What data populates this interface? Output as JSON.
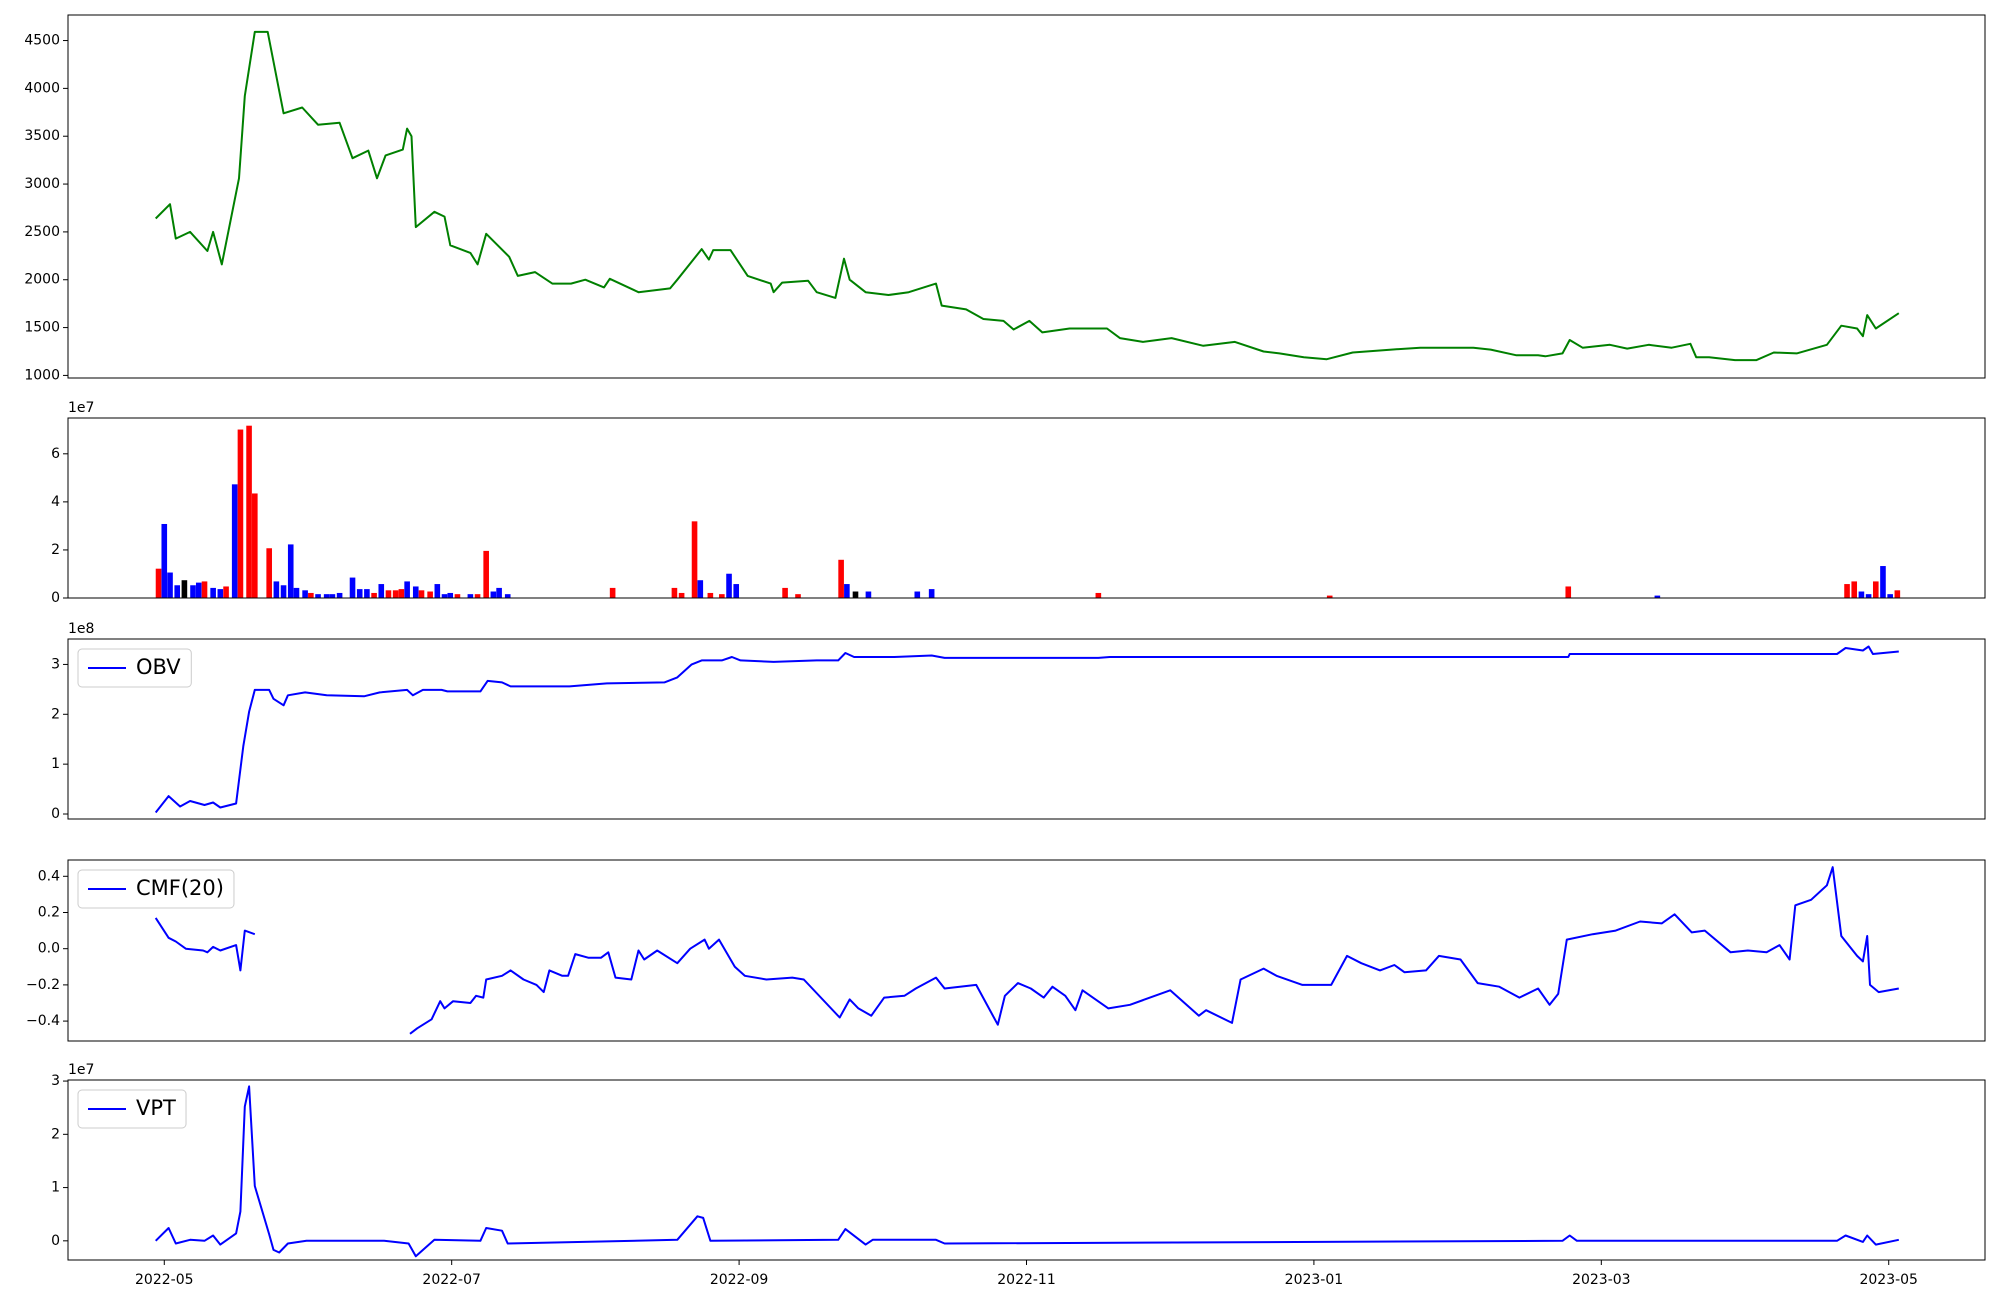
{
  "chart_data": [
    {
      "type": "line",
      "color": "#008000",
      "xlim": [
        -0.67,
        12.67
      ],
      "ylim": [
        973,
        4767
      ],
      "yticks": [
        1000,
        1500,
        2000,
        2500,
        3000,
        3500,
        4000,
        4500
      ],
      "x": [
        -0.06,
        0.04,
        0.08,
        0.18,
        0.3,
        0.34,
        0.4,
        0.52,
        0.56,
        0.63,
        0.72,
        0.83,
        0.96,
        1.07,
        1.22,
        1.31,
        1.42,
        1.48,
        1.54,
        1.66,
        1.69,
        1.72,
        1.75,
        1.88,
        1.95,
        1.99,
        2.13,
        2.18,
        2.24,
        2.4,
        2.46,
        2.58,
        2.7,
        2.83,
        2.93,
        3.06,
        3.1,
        3.3,
        3.52,
        3.57,
        3.74,
        3.79,
        3.82,
        3.94,
        4.06,
        4.22,
        4.24,
        4.3,
        4.48,
        4.54,
        4.67,
        4.73,
        4.77,
        4.88,
        5.04,
        5.18,
        5.37,
        5.41,
        5.58,
        5.7,
        5.84,
        5.91,
        6.02,
        6.11,
        6.3,
        6.56,
        6.65,
        6.81,
        7.01,
        7.23,
        7.45,
        7.65,
        7.76,
        7.93,
        8.09,
        8.27,
        8.54,
        8.74,
        8.95,
        9.11,
        9.23,
        9.41,
        9.56,
        9.61,
        9.73,
        9.78,
        9.87,
        10.06,
        10.18,
        10.33,
        10.49,
        10.62,
        10.66,
        10.75,
        10.93,
        11.08,
        11.2,
        11.36,
        11.57,
        11.67,
        11.78,
        11.82,
        11.85,
        11.91,
        12.07
      ],
      "values": [
        2640,
        2790,
        2430,
        2500,
        2300,
        2500,
        2160,
        3060,
        3920,
        4590,
        4590,
        3740,
        3800,
        3620,
        3640,
        3270,
        3350,
        3060,
        3300,
        3360,
        3580,
        3500,
        2550,
        2710,
        2660,
        2360,
        2280,
        2160,
        2480,
        2240,
        2040,
        2080,
        1960,
        1960,
        2000,
        1920,
        2010,
        1870,
        1910,
        2000,
        2320,
        2210,
        2310,
        2310,
        2040,
        1960,
        1870,
        1970,
        1990,
        1870,
        1810,
        2220,
        2000,
        1870,
        1840,
        1870,
        1960,
        1730,
        1690,
        1590,
        1570,
        1480,
        1570,
        1450,
        1490,
        1490,
        1390,
        1350,
        1390,
        1310,
        1350,
        1250,
        1230,
        1190,
        1170,
        1240,
        1270,
        1290,
        1290,
        1290,
        1270,
        1210,
        1210,
        1200,
        1230,
        1370,
        1290,
        1320,
        1280,
        1320,
        1290,
        1330,
        1190,
        1190,
        1160,
        1160,
        1240,
        1230,
        1320,
        1520,
        1490,
        1410,
        1630,
        1490,
        1650
      ]
    },
    {
      "type": "bar",
      "xlim": [
        -0.67,
        12.67
      ],
      "ylim": [
        0,
        7.49
      ],
      "yticks": [
        0,
        2,
        4,
        6
      ],
      "offset_label": "1e7",
      "x": [
        -0.04,
        0.0,
        0.04,
        0.09,
        0.14,
        0.2,
        0.24,
        0.28,
        0.34,
        0.39,
        0.43,
        0.49,
        0.53,
        0.59,
        0.63,
        0.73,
        0.78,
        0.83,
        0.88,
        0.92,
        0.98,
        1.02,
        1.07,
        1.13,
        1.17,
        1.22,
        1.31,
        1.36,
        1.41,
        1.46,
        1.51,
        1.56,
        1.61,
        1.65,
        1.69,
        1.75,
        1.79,
        1.85,
        1.9,
        1.95,
        1.99,
        2.04,
        2.13,
        2.18,
        2.24,
        2.29,
        2.33,
        2.39,
        3.12,
        3.55,
        3.6,
        3.69,
        3.73,
        3.8,
        3.88,
        3.93,
        3.98,
        4.32,
        4.41,
        4.71,
        4.75,
        4.81,
        4.9,
        5.24,
        5.34,
        6.5,
        8.11,
        9.77,
        10.39,
        11.71,
        11.76,
        11.81,
        11.86,
        11.91,
        11.96,
        12.01,
        12.06
      ],
      "values": [
        1.22,
        3.08,
        1.06,
        0.53,
        0.74,
        0.53,
        0.64,
        0.69,
        0.42,
        0.37,
        0.48,
        4.73,
        7.01,
        7.17,
        4.35,
        2.07,
        0.69,
        0.53,
        2.23,
        0.42,
        0.32,
        0.21,
        0.16,
        0.16,
        0.16,
        0.21,
        0.85,
        0.37,
        0.37,
        0.21,
        0.58,
        0.32,
        0.32,
        0.37,
        0.69,
        0.48,
        0.32,
        0.27,
        0.58,
        0.16,
        0.21,
        0.16,
        0.16,
        0.16,
        1.96,
        0.27,
        0.42,
        0.16,
        0.42,
        0.42,
        0.21,
        3.19,
        0.74,
        0.21,
        0.16,
        1.01,
        0.58,
        0.42,
        0.16,
        1.59,
        0.58,
        0.27,
        0.27,
        0.27,
        0.37,
        0.21,
        0.1,
        0.48,
        0.1,
        0.58,
        0.69,
        0.27,
        0.16,
        0.69,
        1.33,
        0.16,
        0.32
      ],
      "colors": [
        "#ff0000",
        "#0000ff",
        "#0000ff",
        "#0000ff",
        "#000000",
        "#0000ff",
        "#0000ff",
        "#ff0000",
        "#0000ff",
        "#0000ff",
        "#ff0000",
        "#0000ff",
        "#ff0000",
        "#ff0000",
        "#ff0000",
        "#ff0000",
        "#0000ff",
        "#0000ff",
        "#0000ff",
        "#0000ff",
        "#0000ff",
        "#ff0000",
        "#0000ff",
        "#0000ff",
        "#0000ff",
        "#0000ff",
        "#0000ff",
        "#0000ff",
        "#0000ff",
        "#ff0000",
        "#0000ff",
        "#ff0000",
        "#ff0000",
        "#ff0000",
        "#0000ff",
        "#0000ff",
        "#ff0000",
        "#ff0000",
        "#0000ff",
        "#0000ff",
        "#0000ff",
        "#ff0000",
        "#0000ff",
        "#ff0000",
        "#ff0000",
        "#0000ff",
        "#0000ff",
        "#0000ff",
        "#ff0000",
        "#ff0000",
        "#ff0000",
        "#ff0000",
        "#0000ff",
        "#ff0000",
        "#ff0000",
        "#0000ff",
        "#0000ff",
        "#ff0000",
        "#ff0000",
        "#ff0000",
        "#0000ff",
        "#000000",
        "#0000ff",
        "#0000ff",
        "#0000ff",
        "#ff0000",
        "#ff0000",
        "#ff0000",
        "#0000ff",
        "#ff0000",
        "#ff0000",
        "#0000ff",
        "#0000ff",
        "#ff0000",
        "#0000ff",
        "#0000ff",
        "#ff0000"
      ]
    },
    {
      "type": "line",
      "xlim": [
        -0.67,
        12.67
      ],
      "ylim": [
        -0.1,
        3.51
      ],
      "yticks": [
        0,
        1,
        2,
        3
      ],
      "offset_label": "1e8",
      "x": [
        -0.06,
        0.03,
        0.11,
        0.18,
        0.28,
        0.34,
        0.39,
        0.5,
        0.55,
        0.59,
        0.63,
        0.73,
        0.76,
        0.83,
        0.86,
        0.98,
        1.13,
        1.39,
        1.5,
        1.69,
        1.73,
        1.8,
        1.93,
        1.97,
        2.2,
        2.25,
        2.35,
        2.41,
        2.64,
        2.82,
        3.08,
        3.48,
        3.57,
        3.67,
        3.74,
        3.88,
        3.95,
        4.01,
        4.24,
        4.54,
        4.69,
        4.74,
        4.8,
        5.08,
        5.34,
        5.43,
        6.5,
        6.58,
        8.09,
        9.77,
        9.78,
        11.64,
        11.7,
        11.82,
        11.86,
        11.89,
        12.07
      ],
      "series": [
        {
          "name": "OBV",
          "color": "#0000ff",
          "values": [
            0.03,
            0.36,
            0.15,
            0.26,
            0.18,
            0.23,
            0.13,
            0.21,
            1.36,
            2.05,
            2.49,
            2.49,
            2.31,
            2.18,
            2.38,
            2.44,
            2.38,
            2.36,
            2.44,
            2.49,
            2.38,
            2.49,
            2.49,
            2.46,
            2.46,
            2.67,
            2.64,
            2.56,
            2.56,
            2.56,
            2.62,
            2.64,
            2.74,
            3.0,
            3.08,
            3.08,
            3.15,
            3.08,
            3.05,
            3.08,
            3.08,
            3.23,
            3.15,
            3.15,
            3.18,
            3.13,
            3.13,
            3.15,
            3.15,
            3.15,
            3.21,
            3.21,
            3.33,
            3.28,
            3.36,
            3.21,
            3.26
          ]
        }
      ]
    },
    {
      "type": "line",
      "xlim": [
        -0.67,
        12.67
      ],
      "ylim": [
        -0.51,
        0.49
      ],
      "yticks": [
        {
          "value": -0.4,
          "label": "−0.4"
        },
        {
          "value": -0.2,
          "label": "−0.2"
        },
        {
          "value": 0,
          "label": "0.0"
        },
        0.2,
        0.4
      ],
      "x": [
        -0.06,
        0.03,
        0.08,
        0.15,
        0.27,
        0.3,
        0.34,
        0.39,
        0.5,
        0.53,
        0.56,
        0.63,
        1.0,
        1.71,
        1.76,
        1.86,
        1.92,
        1.95,
        2.01,
        2.13,
        2.17,
        2.22,
        2.24,
        2.35,
        2.41,
        2.5,
        2.59,
        2.64,
        2.68,
        2.77,
        2.81,
        2.86,
        2.95,
        3.04,
        3.09,
        3.14,
        3.25,
        3.3,
        3.34,
        3.43,
        3.57,
        3.66,
        3.76,
        3.79,
        3.86,
        3.97,
        4.04,
        4.19,
        4.37,
        4.45,
        4.7,
        4.77,
        4.83,
        4.92,
        5.01,
        5.15,
        5.23,
        5.37,
        5.43,
        5.65,
        5.8,
        5.85,
        5.94,
        6.03,
        6.12,
        6.18,
        6.27,
        6.34,
        6.39,
        6.57,
        6.72,
        7.0,
        7.2,
        7.25,
        7.43,
        7.49,
        7.65,
        7.74,
        7.92,
        8.12,
        8.23,
        8.33,
        8.46,
        8.56,
        8.63,
        8.78,
        8.87,
        9.02,
        9.14,
        9.29,
        9.43,
        9.56,
        9.64,
        9.7,
        9.76,
        9.94,
        10.1,
        10.27,
        10.42,
        10.51,
        10.63,
        10.72,
        10.9,
        11.02,
        11.15,
        11.24,
        11.31,
        11.35,
        11.46,
        11.57,
        11.61,
        11.67,
        11.78,
        11.82,
        11.85,
        11.87,
        11.93,
        12.07
      ],
      "series": [
        {
          "name": "CMF(20)",
          "color": "#0000ff",
          "values": [
            0.17,
            0.06,
            0.04,
            0.0,
            -0.01,
            -0.02,
            0.01,
            -0.01,
            0.02,
            -0.12,
            0.1,
            0.08,
            null,
            -0.47,
            -0.44,
            -0.39,
            -0.29,
            -0.33,
            -0.29,
            -0.3,
            -0.26,
            -0.27,
            -0.17,
            -0.15,
            -0.12,
            -0.17,
            -0.2,
            -0.24,
            -0.12,
            -0.15,
            -0.15,
            -0.03,
            -0.05,
            -0.05,
            -0.02,
            -0.16,
            -0.17,
            -0.01,
            -0.06,
            -0.01,
            -0.08,
            0.0,
            0.05,
            0.0,
            0.05,
            -0.1,
            -0.15,
            -0.17,
            -0.16,
            -0.17,
            -0.38,
            -0.28,
            -0.33,
            -0.37,
            -0.27,
            -0.26,
            -0.22,
            -0.16,
            -0.22,
            -0.2,
            -0.42,
            -0.26,
            -0.19,
            -0.22,
            -0.27,
            -0.21,
            -0.26,
            -0.34,
            -0.23,
            -0.33,
            -0.31,
            -0.23,
            -0.37,
            -0.34,
            -0.41,
            -0.17,
            -0.11,
            -0.15,
            -0.2,
            -0.2,
            -0.04,
            -0.08,
            -0.12,
            -0.09,
            -0.13,
            -0.12,
            -0.04,
            -0.06,
            -0.19,
            -0.21,
            -0.27,
            -0.22,
            -0.31,
            -0.25,
            0.05,
            0.08,
            0.1,
            0.15,
            0.14,
            0.19,
            0.09,
            0.1,
            -0.02,
            -0.01,
            -0.02,
            0.02,
            -0.06,
            0.24,
            0.27,
            0.35,
            0.45,
            0.07,
            -0.04,
            -0.07,
            0.07,
            -0.2,
            -0.24,
            -0.22
          ]
        }
      ]
    },
    {
      "type": "line",
      "xlim": [
        -0.67,
        12.67
      ],
      "ylim": [
        -0.36,
        3.02
      ],
      "yticks": [
        0,
        1,
        2,
        3
      ],
      "offset_label": "1e7",
      "xticks": [
        {
          "value": 0,
          "label": "2022-05"
        },
        {
          "value": 2,
          "label": "2022-07"
        },
        {
          "value": 4,
          "label": "2022-09"
        },
        {
          "value": 6,
          "label": "2022-11"
        },
        {
          "value": 8,
          "label": "2023-01"
        },
        {
          "value": 10,
          "label": "2023-03"
        },
        {
          "value": 12,
          "label": "2023-05"
        }
      ],
      "x": [
        -0.06,
        0.03,
        0.08,
        0.18,
        0.28,
        0.34,
        0.39,
        0.5,
        0.53,
        0.56,
        0.59,
        0.63,
        0.73,
        0.76,
        0.8,
        0.86,
        0.99,
        1.53,
        1.7,
        1.75,
        1.88,
        2.2,
        2.24,
        2.35,
        2.39,
        3.57,
        3.71,
        3.75,
        3.8,
        4.69,
        4.74,
        4.88,
        4.93,
        5.37,
        5.43,
        9.73,
        9.78,
        9.83,
        11.64,
        11.7,
        11.82,
        11.85,
        11.91,
        12.07
      ],
      "series": [
        {
          "name": "VPT",
          "color": "#0000ff",
          "values": [
            0.0,
            0.24,
            -0.05,
            0.02,
            0.0,
            0.1,
            -0.07,
            0.14,
            0.55,
            2.52,
            2.9,
            1.03,
            0.12,
            -0.17,
            -0.22,
            -0.05,
            0.0,
            0.0,
            -0.05,
            -0.29,
            0.02,
            0.0,
            0.24,
            0.19,
            -0.05,
            0.02,
            0.46,
            0.43,
            0.0,
            0.02,
            0.22,
            -0.07,
            0.02,
            0.02,
            -0.05,
            0.0,
            0.1,
            0.0,
            0.0,
            0.1,
            -0.02,
            0.1,
            -0.07,
            0.02
          ]
        }
      ]
    }
  ]
}
